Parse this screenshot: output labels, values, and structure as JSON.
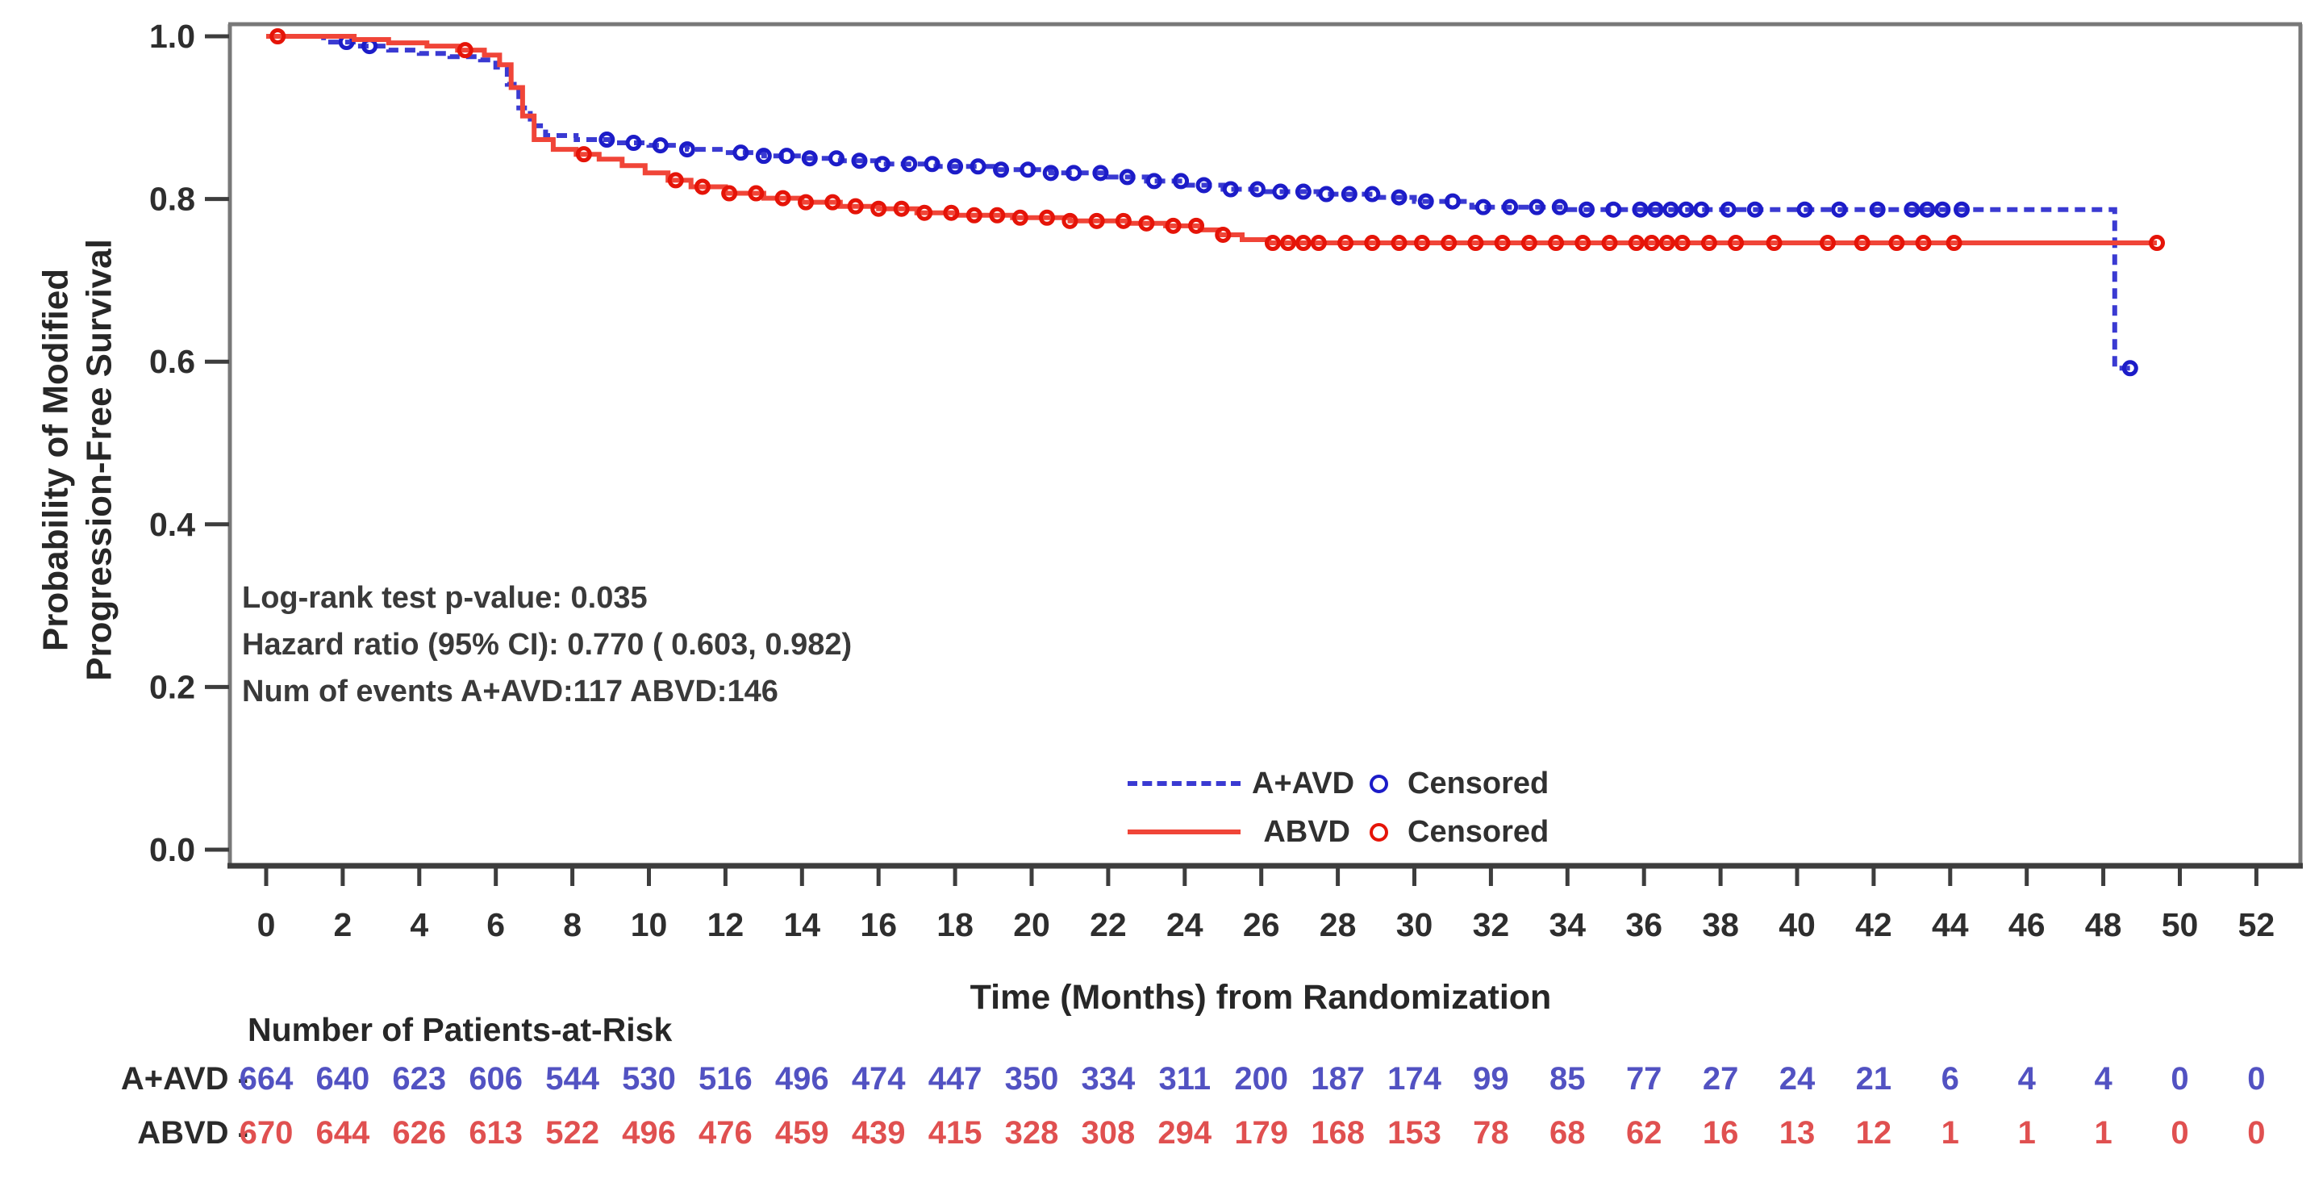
{
  "figure": {
    "background": "#ffffff",
    "y_axis_title": "Probability of Modified\nProgression-Free Survival",
    "x_axis_title": "Time (Months) from Randomization",
    "annotation": {
      "line1": "Log-rank test p-value: 0.035",
      "line2": "Hazard ratio (95% CI):  0.770 ( 0.603,  0.982)",
      "line3": "Num of events  A+AVD:117  ABVD:146"
    },
    "legend": {
      "censored_label": "Censored"
    },
    "at_risk": {
      "header": "Number of Patients-at-Risk",
      "row_labels": [
        "A+AVD -",
        "ABVD -"
      ]
    },
    "colors": {
      "frame_gray": "#787878",
      "axis_dark": "#3d3d3d",
      "text": "#2e2e2e"
    }
  },
  "chart_data": {
    "type": "line",
    "subtype": "kaplan-meier-step",
    "title": "",
    "xlabel": "Time (Months) from Randomization",
    "ylabel": "Probability of Modified Progression-Free Survival",
    "xlim": [
      0,
      52
    ],
    "ylim": [
      0.0,
      1.0
    ],
    "grid": false,
    "legend_position": "inside-bottom-right",
    "x_ticks": [
      0,
      2,
      4,
      6,
      8,
      10,
      12,
      14,
      16,
      18,
      20,
      22,
      24,
      26,
      28,
      30,
      32,
      34,
      36,
      38,
      40,
      42,
      44,
      46,
      48,
      50,
      52
    ],
    "y_ticks": [
      1.0,
      0.8,
      0.6,
      0.4,
      0.2,
      0.0
    ],
    "y_tick_labels": [
      "1.0",
      "0.8",
      "0.6",
      "0.4",
      "0.2",
      "0.0"
    ],
    "stats": {
      "logrank_p": "0.035",
      "hazard_ratio": "0.770",
      "hr_ci_95": "(0.603, 0.982)",
      "events": {
        "A+AVD": 117,
        "ABVD": 146
      }
    },
    "series": [
      {
        "name": "A+AVD",
        "color": "#3a3ad2",
        "censor_color": "#1c1cc8",
        "at_risk_color": "#5252c2",
        "line_style": "dashed",
        "steps": [
          [
            0,
            1.0
          ],
          [
            1.5,
            0.993
          ],
          [
            2.4,
            0.988
          ],
          [
            3.2,
            0.983
          ],
          [
            4.0,
            0.979
          ],
          [
            4.8,
            0.975
          ],
          [
            5.6,
            0.971
          ],
          [
            6.0,
            0.962
          ],
          [
            6.3,
            0.941
          ],
          [
            6.6,
            0.912
          ],
          [
            6.9,
            0.89
          ],
          [
            7.3,
            0.878
          ],
          [
            8.1,
            0.873
          ],
          [
            9.0,
            0.869
          ],
          [
            10.0,
            0.866
          ],
          [
            11.0,
            0.861
          ],
          [
            12.0,
            0.857
          ],
          [
            13.0,
            0.853
          ],
          [
            14.0,
            0.85
          ],
          [
            15.0,
            0.847
          ],
          [
            16.0,
            0.843
          ],
          [
            17.5,
            0.84
          ],
          [
            19.0,
            0.836
          ],
          [
            20.5,
            0.832
          ],
          [
            22.0,
            0.827
          ],
          [
            23.0,
            0.822
          ],
          [
            24.0,
            0.817
          ],
          [
            25.0,
            0.812
          ],
          [
            26.0,
            0.809
          ],
          [
            27.5,
            0.806
          ],
          [
            29.0,
            0.802
          ],
          [
            30.0,
            0.797
          ],
          [
            31.5,
            0.79
          ],
          [
            34.0,
            0.787
          ],
          [
            48.3,
            0.787
          ],
          [
            48.3,
            0.592
          ],
          [
            48.7,
            0.592
          ]
        ],
        "censor_times": [
          2.1,
          2.7,
          8.9,
          9.6,
          10.3,
          11.0,
          12.4,
          13.0,
          13.6,
          14.2,
          14.9,
          15.5,
          16.1,
          16.8,
          17.4,
          18.0,
          18.6,
          19.2,
          19.9,
          20.5,
          21.1,
          21.8,
          22.5,
          23.2,
          23.9,
          24.5,
          25.2,
          25.9,
          26.5,
          27.1,
          27.7,
          28.3,
          28.9,
          29.6,
          30.3,
          31.0,
          31.8,
          32.5,
          33.2,
          33.8,
          34.5,
          35.2,
          35.9,
          36.3,
          36.7,
          37.1,
          37.5,
          38.2,
          38.9,
          40.2,
          41.1,
          42.1,
          43.0,
          43.4,
          43.8,
          44.3,
          48.7
        ],
        "number_at_risk": [
          664,
          640,
          623,
          606,
          544,
          530,
          516,
          496,
          474,
          447,
          350,
          334,
          311,
          200,
          187,
          174,
          99,
          85,
          77,
          27,
          24,
          21,
          6,
          4,
          4,
          0,
          0
        ]
      },
      {
        "name": "ABVD",
        "color": "#f04538",
        "censor_color": "#e51408",
        "at_risk_color": "#e05050",
        "line_style": "solid",
        "steps": [
          [
            0,
            1.0
          ],
          [
            2.3,
            0.996
          ],
          [
            3.2,
            0.992
          ],
          [
            4.2,
            0.988
          ],
          [
            5.0,
            0.983
          ],
          [
            5.7,
            0.977
          ],
          [
            6.1,
            0.965
          ],
          [
            6.4,
            0.937
          ],
          [
            6.7,
            0.902
          ],
          [
            7.0,
            0.873
          ],
          [
            7.5,
            0.861
          ],
          [
            8.1,
            0.855
          ],
          [
            8.7,
            0.849
          ],
          [
            9.3,
            0.841
          ],
          [
            9.9,
            0.832
          ],
          [
            10.5,
            0.823
          ],
          [
            11.1,
            0.815
          ],
          [
            12.0,
            0.807
          ],
          [
            13.0,
            0.801
          ],
          [
            14.0,
            0.796
          ],
          [
            15.0,
            0.791
          ],
          [
            16.0,
            0.788
          ],
          [
            17.0,
            0.783
          ],
          [
            18.0,
            0.78
          ],
          [
            19.5,
            0.777
          ],
          [
            21.0,
            0.773
          ],
          [
            22.5,
            0.77
          ],
          [
            23.5,
            0.767
          ],
          [
            24.4,
            0.762
          ],
          [
            24.9,
            0.756
          ],
          [
            25.5,
            0.75
          ],
          [
            26.2,
            0.746
          ],
          [
            49.4,
            0.746
          ]
        ],
        "censor_times": [
          0.3,
          5.2,
          8.3,
          10.7,
          11.4,
          12.1,
          12.8,
          13.5,
          14.1,
          14.8,
          15.4,
          16.0,
          16.6,
          17.2,
          17.9,
          18.5,
          19.1,
          19.7,
          20.4,
          21.0,
          21.7,
          22.4,
          23.0,
          23.7,
          24.3,
          25.0,
          26.3,
          26.7,
          27.1,
          27.5,
          28.2,
          28.9,
          29.6,
          30.2,
          30.9,
          31.6,
          32.3,
          33.0,
          33.7,
          34.4,
          35.1,
          35.8,
          36.2,
          36.6,
          37.0,
          37.7,
          38.4,
          39.4,
          40.8,
          41.7,
          42.6,
          43.3,
          44.1,
          49.4
        ],
        "number_at_risk": [
          670,
          644,
          626,
          613,
          522,
          496,
          476,
          459,
          439,
          415,
          328,
          308,
          294,
          179,
          168,
          153,
          78,
          68,
          62,
          16,
          13,
          12,
          1,
          1,
          1,
          0,
          0
        ]
      }
    ]
  }
}
